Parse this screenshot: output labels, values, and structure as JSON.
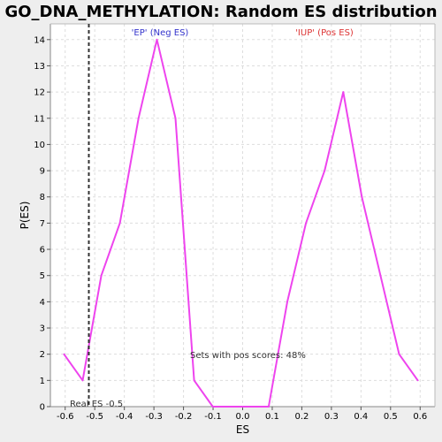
{
  "chart_data": {
    "type": "line",
    "title": "GO_DNA_METHYLATION: Random ES distribution",
    "xlabel": "ES",
    "ylabel": "P(ES)",
    "xlim": [
      -0.65,
      0.65
    ],
    "ylim": [
      0,
      14.6
    ],
    "xticks": [
      -0.6,
      -0.5,
      -0.4,
      -0.3,
      -0.2,
      -0.1,
      0.0,
      0.1,
      0.2,
      0.3,
      0.4,
      0.5,
      0.6
    ],
    "xtick_labels": [
      "-0.6",
      "-0.5",
      "-0.4",
      "-0.3",
      "-0.2",
      "-0.1",
      "0.0",
      "0.1",
      "0.2",
      "0.3",
      "0.4",
      "0.5",
      "0.6"
    ],
    "yticks": [
      0,
      1,
      2,
      3,
      4,
      5,
      6,
      7,
      8,
      9,
      10,
      11,
      12,
      13,
      14
    ],
    "ytick_labels": [
      "0",
      "1",
      "2",
      "3",
      "4",
      "5",
      "6",
      "7",
      "8",
      "9",
      "10",
      "11",
      "12",
      "13",
      "14"
    ],
    "grid": true,
    "series": [
      {
        "color": "#ee44ee",
        "x": [
          -0.604,
          -0.541,
          -0.478,
          -0.415,
          -0.352,
          -0.29,
          -0.227,
          -0.164,
          -0.101,
          -0.038,
          0.025,
          0.088,
          0.151,
          0.214,
          0.277,
          0.34,
          0.403,
          0.466,
          0.529,
          0.592
        ],
        "y": [
          2,
          1,
          5,
          7,
          11,
          14,
          11,
          1,
          0,
          0,
          0,
          0,
          4,
          7,
          9,
          12,
          8,
          5,
          2,
          1
        ]
      }
    ],
    "real_es": -0.52,
    "annotations": {
      "neg_label": "'EP' (Neg ES)",
      "pos_label": "'IUP' (Pos ES)",
      "pos_scores": "Sets with pos scores: 48%",
      "real_es": "Real ES -0.5"
    },
    "colors": {
      "neg_label": "#3333cc",
      "pos_label": "#dd3333",
      "line": "#ee44ee",
      "real_es_line": "#333333",
      "plot_bg": "#ffffff",
      "grid": "#dddddd"
    }
  }
}
